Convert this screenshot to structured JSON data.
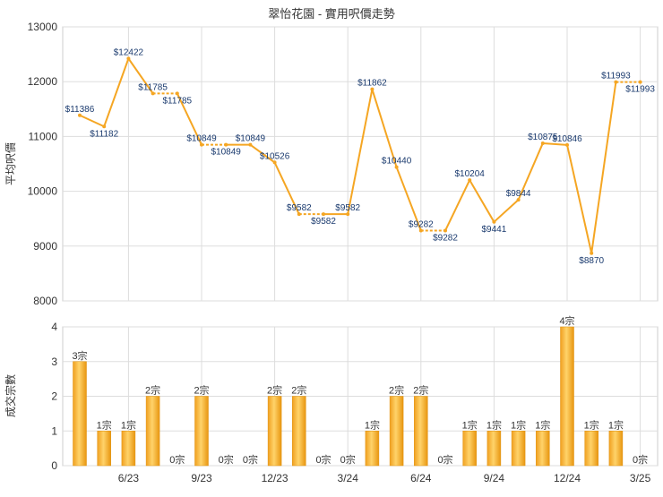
{
  "chart_data": [
    {
      "type": "line",
      "title": "翠怡花園 - 實用呎價走勢",
      "ylabel": "平均呎價",
      "ylim": [
        8000,
        13000
      ],
      "yticks": [
        "8000",
        "9000",
        "10000",
        "11000",
        "12000",
        "13000"
      ],
      "grid": true,
      "line_color": "#F5A623",
      "series": [
        {
          "values": [
            11386,
            11182,
            12422,
            11785,
            11785,
            10849,
            10849,
            10849,
            10526,
            9582,
            9582,
            9582,
            11862,
            10440,
            9282,
            9282,
            10204,
            9441,
            9844,
            10875,
            10846,
            8870,
            11993,
            11993
          ],
          "labels": [
            "$11386",
            "$11182",
            "$12422",
            "$11785",
            "$11785",
            "$10849",
            "$10849",
            "$10849",
            "$10526",
            "$9582",
            "$9582",
            "$9582",
            "$11862",
            "$10440",
            "$9282",
            "$9282",
            "$10204",
            "$9441",
            "$9844",
            "$10875",
            "$10846",
            "$8870",
            "$11993",
            "$11993"
          ],
          "carried": [
            false,
            false,
            false,
            false,
            true,
            false,
            true,
            false,
            false,
            false,
            true,
            false,
            false,
            false,
            false,
            true,
            false,
            false,
            false,
            false,
            false,
            false,
            false,
            true
          ]
        }
      ]
    },
    {
      "type": "bar",
      "ylabel": "成交宗數",
      "ylim": [
        0,
        4
      ],
      "yticks": [
        "0",
        "1",
        "2",
        "3",
        "4"
      ],
      "xticks": [
        {
          "index": 2,
          "label": "6/23"
        },
        {
          "index": 5,
          "label": "9/23"
        },
        {
          "index": 8,
          "label": "12/23"
        },
        {
          "index": 11,
          "label": "3/24"
        },
        {
          "index": 14,
          "label": "6/24"
        },
        {
          "index": 17,
          "label": "9/24"
        },
        {
          "index": 20,
          "label": "12/24"
        },
        {
          "index": 23,
          "label": "3/25"
        }
      ],
      "bar_color": "#F5A623",
      "series": [
        {
          "values": [
            3,
            1,
            1,
            2,
            0,
            2,
            0,
            0,
            2,
            2,
            0,
            0,
            1,
            2,
            2,
            0,
            1,
            1,
            1,
            1,
            4,
            1,
            1,
            0
          ],
          "labels": [
            "3宗",
            "1宗",
            "1宗",
            "2宗",
            "0宗",
            "2宗",
            "0宗",
            "0宗",
            "2宗",
            "2宗",
            "0宗",
            "0宗",
            "1宗",
            "2宗",
            "2宗",
            "0宗",
            "1宗",
            "1宗",
            "1宗",
            "1宗",
            "4宗",
            "1宗",
            "1宗",
            "0宗"
          ]
        }
      ]
    }
  ]
}
